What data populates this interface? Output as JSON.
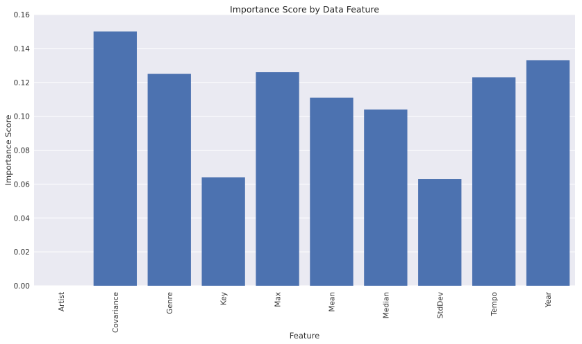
{
  "chart_data": {
    "type": "bar",
    "title": "Importance Score by Data Feature",
    "xlabel": "Feature",
    "ylabel": "Importance Score",
    "categories": [
      "Artist",
      "Covariance",
      "Genre",
      "Key",
      "Max",
      "Mean",
      "Median",
      "StdDev",
      "Tempo",
      "Year"
    ],
    "values": [
      0.0,
      0.15,
      0.125,
      0.064,
      0.126,
      0.111,
      0.104,
      0.063,
      0.123,
      0.133
    ],
    "ylim": [
      0,
      0.16
    ],
    "yticks": [
      "0.00",
      "0.02",
      "0.04",
      "0.06",
      "0.08",
      "0.10",
      "0.12",
      "0.14",
      "0.16"
    ],
    "grid": true,
    "colors": {
      "bar": "#4c72b0",
      "background": "#eaeaf2",
      "grid": "#ffffff"
    }
  }
}
